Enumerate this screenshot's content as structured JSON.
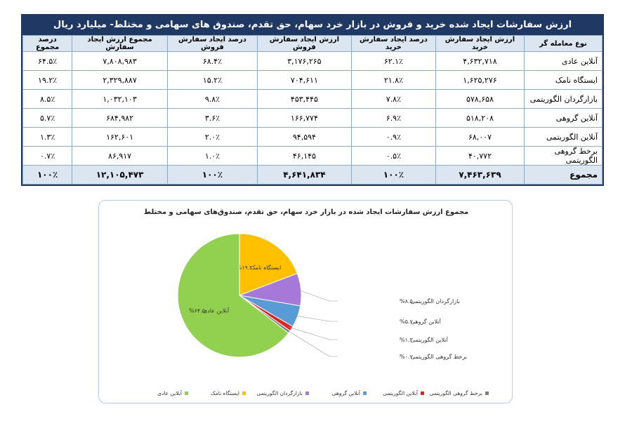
{
  "table": {
    "title": "ارزش سفارشات ایجاد شده خرید و فروش در بازار خرد سهام، حق تقدم، صندوق های سهامی و مختلط- میلیارد ریال",
    "headers": [
      "نوع معامله گر",
      "ارزش ایجاد سفارش خرید",
      "درصد ایجاد سفارش خرید",
      "ارزش ایجاد سفارش فروش",
      "درصد ایجاد سفارش فروش",
      "مجموع ارزش ایجاد سفارش",
      "درصد مجموع"
    ],
    "rows": [
      [
        "آنلاین عادی",
        "۴,۶۳۲,۷۱۸",
        "۶۲.۱٪",
        "۳,۱۷۶,۲۶۵",
        "۶۸.۴٪",
        "۷,۸۰۸,۹۸۳",
        "۶۴.۵٪"
      ],
      [
        "ایستگاه نامک",
        "۱,۶۲۵,۲۷۶",
        "۲۱.۸٪",
        "۷۰۴,۶۱۱",
        "۱۵.۲٪",
        "۲,۳۲۹,۸۸۷",
        "۱۹.۲٪"
      ],
      [
        "بازارگردان الگوریتمی",
        "۵۷۸,۶۵۸",
        "۷.۸٪",
        "۴۵۳,۴۴۵",
        "۹.۸٪",
        "۱,۰۳۲,۱۰۳",
        "۸.۵٪"
      ],
      [
        "آنلاین گروهی",
        "۵۱۸,۲۰۸",
        "۶.۹٪",
        "۱۶۶,۷۷۴",
        "۳.۶٪",
        "۶۸۴,۹۸۲",
        "۵.۷٪"
      ],
      [
        "آنلاین الگوریتمی",
        "۶۸,۰۰۷",
        "۰.۹٪",
        "۹۴,۵۹۴",
        "۲.۰٪",
        "۱۶۲,۶۰۱",
        "۱.۳٪"
      ],
      [
        "برخط گروهی الگوریتمی",
        "۴۰,۷۷۲",
        "۰.۵٪",
        "۴۶,۱۴۵",
        "۱.۰٪",
        "۸۶,۹۱۷",
        "۰.۷٪"
      ]
    ],
    "total": [
      "مجموع",
      "۷,۴۶۳,۶۳۹",
      "۱۰۰٪",
      "۴,۶۴۱,۸۳۴",
      "۱۰۰٪",
      "۱۲,۱۰۵,۴۷۳",
      "۱۰۰٪"
    ]
  },
  "chart_data": {
    "type": "pie",
    "title": "مجموع ارزش سفارشات ایجاد شده در بازار خرد سهام، حق تقدم، صندوق‌های سهامی و مختلط",
    "categories": [
      "آنلاین عادی",
      "ایستگاه نامک",
      "بازارگردان الگوریتمی",
      "آنلاین گروهی",
      "آنلاین الگوریتمی",
      "برخط گروهی الگوریتمی"
    ],
    "values": [
      64.5,
      19.2,
      8.5,
      5.7,
      1.3,
      0.7
    ],
    "value_labels": [
      "۶۴.۵%",
      "۱۹.۲%",
      "۸.۵%",
      "۵.۷%",
      "۱.۳%",
      "۰.۷%"
    ],
    "colors": [
      "#92d050",
      "#ffc000",
      "#a678d8",
      "#5b9bd5",
      "#e02424",
      "#7f7f7f"
    ],
    "legend": "bottom"
  }
}
